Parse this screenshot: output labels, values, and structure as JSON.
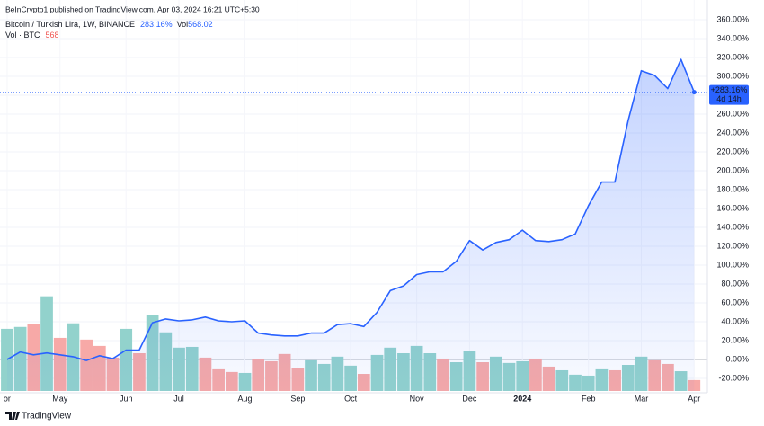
{
  "chart_data": {
    "type": "line",
    "published": "BeInCrypto1 published on TradingView.com, Apr 03, 2024 16:21 UTC+5:30",
    "title": "Bitcoin / Turkish Lira, 1W, BINANCE",
    "last_label": "283.16%",
    "volume_title": "Vol",
    "volume_last": "568.02",
    "volume_legend": "Vol · BTC",
    "volume_legend_value": "568",
    "price_tag": "+283.16%",
    "countdown": "4d 14h",
    "brand": "TradingView",
    "grid": true,
    "xlim": [
      -0.54,
      53
    ],
    "xticks": [
      {
        "value": 0,
        "label": "or"
      },
      {
        "value": 4,
        "label": "May"
      },
      {
        "value": 9,
        "label": "Jun"
      },
      {
        "value": 13,
        "label": "Jul"
      },
      {
        "value": 18,
        "label": "Aug"
      },
      {
        "value": 22,
        "label": "Sep"
      },
      {
        "value": 26,
        "label": "Oct"
      },
      {
        "value": 31,
        "label": "Nov"
      },
      {
        "value": 35,
        "label": "Dec"
      },
      {
        "value": 39,
        "label": "2024"
      },
      {
        "value": 44,
        "label": "Feb"
      },
      {
        "value": 48,
        "label": "Mar"
      },
      {
        "value": 52,
        "label": "Apr"
      }
    ],
    "ylim": [
      -33.3,
      380.9
    ],
    "yticks": [
      {
        "value": -20,
        "label": "-20.00%"
      },
      {
        "value": 0,
        "label": "0.00%"
      },
      {
        "value": 20,
        "label": "20.00%"
      },
      {
        "value": 40,
        "label": "40.00%"
      },
      {
        "value": 60,
        "label": "60.00%"
      },
      {
        "value": 80,
        "label": "80.00%"
      },
      {
        "value": 100,
        "label": "100.00%"
      },
      {
        "value": 120,
        "label": "120.00%"
      },
      {
        "value": 140,
        "label": "140.00%"
      },
      {
        "value": 160,
        "label": "160.00%"
      },
      {
        "value": 180,
        "label": "180.00%"
      },
      {
        "value": 200,
        "label": "200.00%"
      },
      {
        "value": 220,
        "label": "220.00%"
      },
      {
        "value": 240,
        "label": "240.00%"
      },
      {
        "value": 260,
        "label": "260.00%"
      },
      {
        "value": 280,
        "label": "280.00%"
      },
      {
        "value": 300,
        "label": "300.00%"
      },
      {
        "value": 320,
        "label": "320.00%"
      },
      {
        "value": 340,
        "label": "340.00%"
      },
      {
        "value": 360,
        "label": "360.00%"
      }
    ],
    "color": "#2962ff",
    "values": [
      0,
      8,
      5,
      7,
      5,
      3,
      -1,
      4,
      1,
      10,
      10,
      39,
      43,
      41,
      42,
      45,
      41,
      40,
      41,
      28,
      26,
      25,
      25,
      28,
      28,
      37,
      38,
      35,
      50,
      73,
      78,
      90,
      93,
      93,
      104,
      126,
      116,
      124,
      127,
      137,
      126,
      125,
      127,
      133,
      163,
      188,
      188,
      253,
      306,
      301,
      287,
      318,
      283.16
    ],
    "volume_lim": [
      0,
      20400
    ],
    "volume": [
      3240,
      3340,
      3480,
      4940,
      2770,
      3530,
      2680,
      2350,
      1740,
      3240,
      1970,
      3950,
      3060,
      2260,
      2300,
      1740,
      1130,
      990,
      940,
      1650,
      1550,
      1930,
      1180,
      1600,
      1410,
      1790,
      1320,
      890,
      1880,
      2260,
      1970,
      2350,
      1970,
      1690,
      1500,
      2070,
      1500,
      1790,
      1460,
      1550,
      1690,
      1270,
      1080,
      850,
      800,
      1130,
      1080,
      1360,
      1790,
      1600,
      1410,
      1030,
      568
    ],
    "volume_colors": [
      "#92d2cc",
      "#92d2cc",
      "#f7a9a7",
      "#92d2cc",
      "#f7a9a7",
      "#92d2cc",
      "#f7a9a7",
      "#f7a9a7",
      "#f7a9a7",
      "#92d2cc",
      "#f7a9a7",
      "#92d2cc",
      "#92d2cc",
      "#92d2cc",
      "#92d2cc",
      "#f7a9a7",
      "#f7a9a7",
      "#f7a9a7",
      "#92d2cc",
      "#f7a9a7",
      "#f7a9a7",
      "#f7a9a7",
      "#f7a9a7",
      "#92d2cc",
      "#92d2cc",
      "#92d2cc",
      "#92d2cc",
      "#f7a9a7",
      "#92d2cc",
      "#92d2cc",
      "#92d2cc",
      "#92d2cc",
      "#92d2cc",
      "#f7a9a7",
      "#92d2cc",
      "#92d2cc",
      "#f7a9a7",
      "#92d2cc",
      "#92d2cc",
      "#92d2cc",
      "#f7a9a7",
      "#f7a9a7",
      "#92d2cc",
      "#92d2cc",
      "#92d2cc",
      "#92d2cc",
      "#f7a9a7",
      "#92d2cc",
      "#92d2cc",
      "#f7a9a7",
      "#f7a9a7",
      "#92d2cc",
      "#f7a9a7"
    ]
  }
}
